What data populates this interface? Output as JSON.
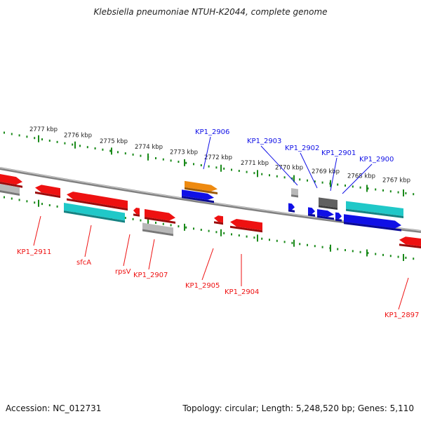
{
  "title": "Klebsiella pneumoniae NTUH-K2044, complete genome",
  "footer": {
    "accession": "Accession: NC_012731",
    "summary": "Topology: circular; Length: 5,248,520 bp; Genes: 5,110"
  },
  "colors": {
    "forward": "#1010e6",
    "reverse": "#ee1111",
    "tick": "#1a8a1a",
    "backbone": "#808080",
    "cyan": "#20c8c8",
    "orange": "#ee8a10",
    "gray": "#b8b8b8",
    "darkgray": "#606060"
  },
  "scale": {
    "unit": "kbp",
    "labels": [
      "2777 kbp",
      "2776 kbp",
      "2775 kbp",
      "2774 kbp",
      "2773 kbp",
      "2772 kbp",
      "2771 kbp",
      "2770 kbp",
      "2769 kbp",
      "2768 kbp",
      "2767 kbp"
    ]
  },
  "genes": [
    {
      "label": "KP1_2906",
      "strand": "forward",
      "color": "orange"
    },
    {
      "label": "KP1_2903",
      "strand": "forward",
      "color": "forward"
    },
    {
      "label": "KP1_2902",
      "strand": "forward",
      "color": "forward"
    },
    {
      "label": "KP1_2901",
      "strand": "forward",
      "color": "forward"
    },
    {
      "label": "KP1_2900",
      "strand": "forward",
      "color": "cyan"
    },
    {
      "label": "KP1_2911",
      "strand": "reverse",
      "color": "reverse"
    },
    {
      "label": "sfcA",
      "strand": "reverse",
      "color": "cyan"
    },
    {
      "label": "rpsV",
      "strand": "reverse",
      "color": "reverse"
    },
    {
      "label": "KP1_2907",
      "strand": "reverse",
      "color": "gray"
    },
    {
      "label": "KP1_2905",
      "strand": "reverse",
      "color": "reverse"
    },
    {
      "label": "KP1_2904",
      "strand": "reverse",
      "color": "reverse"
    },
    {
      "label": "KP1_2897",
      "strand": "reverse",
      "color": "reverse"
    }
  ]
}
